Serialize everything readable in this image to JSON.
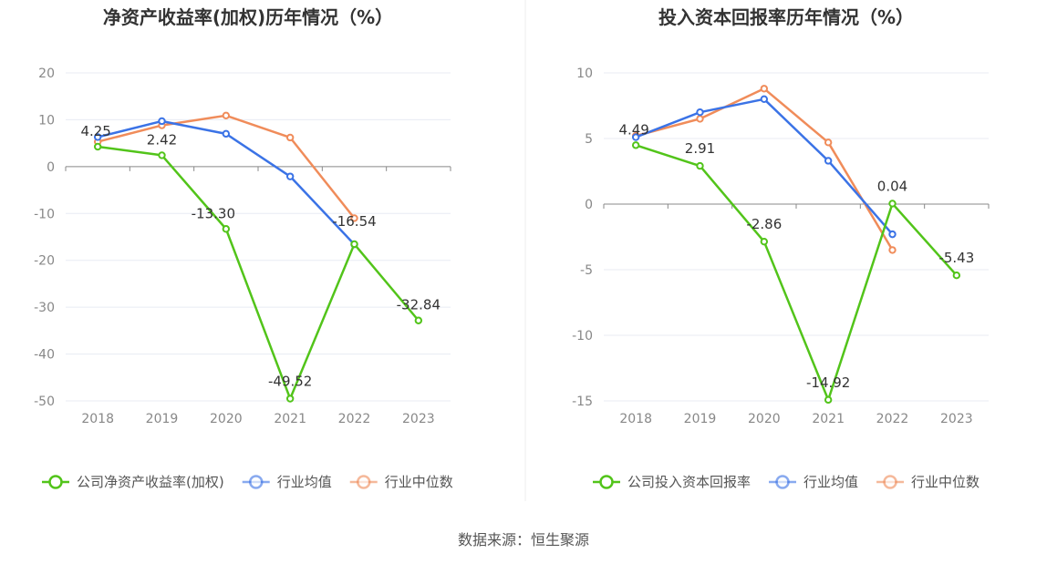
{
  "source": "数据来源：恒生聚源",
  "colors": {
    "company": "#52c41a",
    "avg": "#3b73e6",
    "median": "#f08c5a"
  },
  "chart_data": [
    {
      "type": "line",
      "title": "净资产收益率(加权)历年情况（%）",
      "categories": [
        "2018",
        "2019",
        "2020",
        "2021",
        "2022",
        "2023"
      ],
      "ylim": [
        -50,
        20
      ],
      "yticks": [
        20,
        10,
        0,
        -10,
        -20,
        -30,
        -40,
        -50
      ],
      "series": [
        {
          "name": "公司净资产收益率(加权)",
          "values": [
            4.25,
            2.42,
            -13.3,
            -49.52,
            -16.54,
            -32.84
          ],
          "labels": [
            "4.25",
            "2.42",
            "-13.30",
            "-49.52",
            "-16.54",
            "-32.84"
          ]
        },
        {
          "name": "行业均值",
          "values": [
            6.3,
            9.7,
            7.0,
            -2.1,
            -16.6,
            null
          ]
        },
        {
          "name": "行业中位数",
          "values": [
            5.3,
            8.8,
            10.9,
            6.2,
            -11.0,
            null
          ]
        }
      ]
    },
    {
      "type": "line",
      "title": "投入资本回报率历年情况（%）",
      "categories": [
        "2018",
        "2019",
        "2020",
        "2021",
        "2022",
        "2023"
      ],
      "ylim": [
        -15,
        10
      ],
      "yticks": [
        10,
        5,
        0,
        -5,
        -10,
        -15
      ],
      "series": [
        {
          "name": "公司投入资本回报率",
          "values": [
            4.49,
            2.91,
            -2.86,
            -14.92,
            0.04,
            -5.43
          ],
          "labels": [
            "4.49",
            "2.91",
            "-2.86",
            "-14.92",
            "0.04",
            "-5.43"
          ]
        },
        {
          "name": "行业均值",
          "values": [
            5.1,
            7.0,
            8.0,
            3.3,
            -2.3,
            null
          ]
        },
        {
          "name": "行业中位数",
          "values": [
            5.2,
            6.5,
            8.8,
            4.7,
            -3.5,
            null
          ]
        }
      ]
    }
  ]
}
